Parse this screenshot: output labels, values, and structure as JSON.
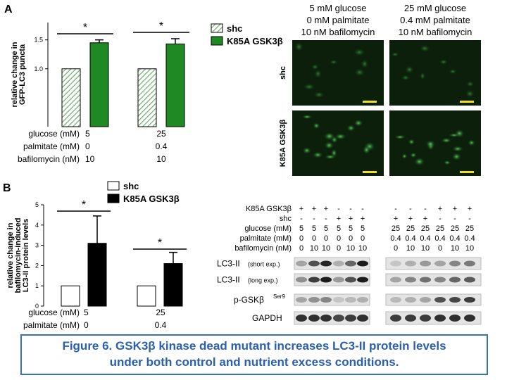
{
  "panels": [
    "A",
    "B"
  ],
  "chart_data": [
    {
      "type": "bar",
      "ylabel": [
        "relative change in",
        "GFP-LC3 puncta"
      ],
      "groups": 2,
      "series": [
        {
          "name": "shc",
          "color": "#ffffff",
          "hatch": true,
          "values": [
            1.0,
            1.0
          ],
          "errors": [
            0,
            0
          ]
        },
        {
          "name": "K85A GSK3β",
          "color": "#1f8a24",
          "values": [
            1.45,
            1.43
          ],
          "errors": [
            0.05,
            0.09
          ]
        }
      ],
      "significance": [
        "*",
        "*"
      ],
      "ylim": [
        0,
        1.8
      ],
      "yticks": [
        {
          "value": 1,
          "label": "1.0"
        },
        {
          "value": 1.5,
          "label": "1.5"
        }
      ],
      "conditions": [
        {
          "label": "glucose (mM)",
          "values": [
            5,
            25
          ]
        },
        {
          "label": "palmitate (mM)",
          "values": [
            0,
            0.4
          ]
        },
        {
          "label": "bafilomycin (nM)",
          "values": [
            10,
            10
          ]
        }
      ]
    },
    {
      "type": "bar",
      "ylabel": [
        "relative change in",
        "bafilomycin-induced",
        "LC3-II protein levels"
      ],
      "groups": 2,
      "series": [
        {
          "name": "shc",
          "color": "#ffffff",
          "values": [
            1,
            1
          ],
          "errors": [
            0,
            0
          ]
        },
        {
          "name": "K85A GSK3β",
          "color": "#000000",
          "values": [
            3.1,
            2.1
          ],
          "errors": [
            1.35,
            0.55
          ]
        }
      ],
      "significance": [
        "*",
        "*"
      ],
      "ylim": [
        0,
        5
      ],
      "yticks": [
        0,
        1,
        2,
        3,
        4,
        5
      ],
      "conditions": [
        {
          "label": "glucose (mM)",
          "values": [
            5,
            25
          ]
        },
        {
          "label": "palmitate (mM)",
          "values": [
            0,
            0.4
          ]
        }
      ]
    }
  ],
  "micrographs": {
    "columns": [
      [
        "5 mM glucose",
        "0 mM palmitate",
        "10 nM bafilomycin"
      ],
      [
        "25 mM glucose",
        "0.4 mM palmitate",
        "10 nM bafilomycin"
      ]
    ],
    "rows": [
      "shc",
      "K85A GSK3β"
    ]
  },
  "blot": {
    "conditions": [
      {
        "label": "K85A GSK3β",
        "lanes": [
          "+",
          "+",
          "+",
          "-",
          "-",
          "-",
          "-",
          "-",
          "-",
          "+",
          "+",
          "+"
        ]
      },
      {
        "label": "shc",
        "lanes": [
          "-",
          "-",
          "-",
          "+",
          "+",
          "+",
          "+",
          "+",
          "+",
          "-",
          "-",
          "-"
        ]
      },
      {
        "label": "glucose (mM)",
        "lanes": [
          5,
          5,
          5,
          5,
          5,
          5,
          25,
          25,
          25,
          25,
          25,
          25
        ]
      },
      {
        "label": "palmitate (mM)",
        "lanes": [
          0,
          0,
          0,
          0,
          0,
          0,
          0.4,
          0.4,
          0.4,
          0.4,
          0.4,
          0.4
        ]
      },
      {
        "label": "bafilomycin (nM)",
        "lanes": [
          0,
          10,
          10,
          0,
          10,
          10,
          0,
          10,
          10,
          0,
          10,
          10
        ]
      }
    ],
    "bands": [
      {
        "label": "LC3-II",
        "note": "(short exp.)"
      },
      {
        "label": "LC3-II",
        "note": "(long exp.)"
      },
      {
        "label": "p-GSKβ",
        "sup": "Ser9"
      },
      {
        "label": "GAPDH"
      }
    ]
  },
  "caption": [
    "Figure 6.  GSK3β kinase dead mutant increases LC3-II protein levels",
    "under both control and nutrient excess conditions."
  ]
}
